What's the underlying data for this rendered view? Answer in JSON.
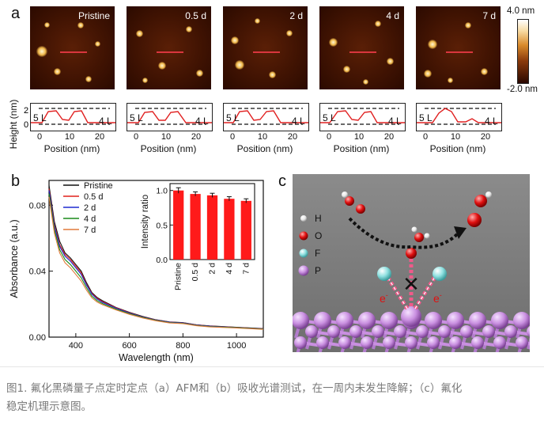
{
  "panel_a": {
    "letter": "a",
    "image_labels": [
      "Pristine",
      "0.5 d",
      "2 d",
      "4 d",
      "7 d"
    ],
    "colorbar": {
      "max": "4.0 nm",
      "min": "-2.0 nm"
    },
    "profile": {
      "ylabel": "Height (nm)",
      "yticks": [
        "0",
        "2"
      ],
      "xticks": [
        "0",
        "10",
        "20"
      ],
      "xlabel": "Position (nm)",
      "left_layer": "5 L",
      "right_layer": "4 L"
    }
  },
  "panel_b": {
    "letter": "b",
    "xlabel": "Wavelength (nm)",
    "ylabel": "Absorbance (a.u.)",
    "xticks": [
      "400",
      "600",
      "800",
      "1000"
    ],
    "yticks": [
      "0.00",
      "0.04",
      "0.08"
    ],
    "legend": [
      {
        "name": "Pristine",
        "color": "#111111"
      },
      {
        "name": "0.5 d",
        "color": "#e0201c"
      },
      {
        "name": "2 d",
        "color": "#1f2ad1"
      },
      {
        "name": "4 d",
        "color": "#1a8a1a"
      },
      {
        "name": "7 d",
        "color": "#e07a3a"
      }
    ]
  },
  "chart_data": [
    {
      "type": "line",
      "xlabel": "Wavelength (nm)",
      "ylabel": "Absorbance (a.u.)",
      "xlim": [
        300,
        1100
      ],
      "ylim": [
        0.0,
        0.095
      ],
      "x": [
        300,
        320,
        340,
        360,
        380,
        400,
        420,
        440,
        460,
        480,
        500,
        550,
        600,
        650,
        700,
        750,
        800,
        850,
        900,
        1000,
        1100
      ],
      "series": [
        {
          "name": "Pristine",
          "values": [
            0.092,
            0.07,
            0.058,
            0.051,
            0.048,
            0.044,
            0.04,
            0.033,
            0.027,
            0.024,
            0.022,
            0.018,
            0.015,
            0.0125,
            0.0105,
            0.0092,
            0.0088,
            0.0075,
            0.0068,
            0.006,
            0.0052
          ]
        },
        {
          "name": "0.5 d",
          "values": [
            0.09,
            0.068,
            0.056,
            0.05,
            0.047,
            0.043,
            0.039,
            0.032,
            0.0265,
            0.0235,
            0.0215,
            0.0178,
            0.0148,
            0.0123,
            0.0104,
            0.0091,
            0.0087,
            0.0074,
            0.0067,
            0.0059,
            0.0051
          ]
        },
        {
          "name": "2 d",
          "values": [
            0.089,
            0.067,
            0.055,
            0.049,
            0.046,
            0.042,
            0.038,
            0.0315,
            0.026,
            0.023,
            0.021,
            0.0175,
            0.0146,
            0.0122,
            0.0103,
            0.009,
            0.0086,
            0.0073,
            0.0066,
            0.0058,
            0.005
          ]
        },
        {
          "name": "4 d",
          "values": [
            0.087,
            0.065,
            0.053,
            0.047,
            0.044,
            0.04,
            0.036,
            0.03,
            0.0248,
            0.022,
            0.0203,
            0.017,
            0.0142,
            0.0119,
            0.0101,
            0.0088,
            0.0084,
            0.0071,
            0.0064,
            0.0057,
            0.0049
          ]
        },
        {
          "name": "7 d",
          "values": [
            0.085,
            0.063,
            0.051,
            0.045,
            0.042,
            0.038,
            0.034,
            0.0285,
            0.0238,
            0.0212,
            0.0196,
            0.0165,
            0.0138,
            0.0116,
            0.0099,
            0.0086,
            0.0082,
            0.0069,
            0.0062,
            0.0055,
            0.0047
          ]
        }
      ]
    },
    {
      "type": "bar",
      "ylabel": "Intensity ratio",
      "categories": [
        "Pristine",
        "0.5 d",
        "2 d",
        "4 d",
        "7 d"
      ],
      "values": [
        1.0,
        0.95,
        0.93,
        0.88,
        0.85
      ],
      "errors": [
        0.04,
        0.03,
        0.03,
        0.03,
        0.03
      ],
      "ylim": [
        0.0,
        1.1
      ],
      "yticks": [
        "0.0",
        "0.5",
        "1.0"
      ]
    }
  ],
  "panel_c": {
    "letter": "c",
    "legend": [
      {
        "label": "H",
        "color": "#f2f2f2"
      },
      {
        "label": "O",
        "color": "#e01010"
      },
      {
        "label": "F",
        "color": "#8fe0e0"
      },
      {
        "label": "P",
        "color": "#c98fe0"
      }
    ],
    "electron_left": "e",
    "electron_right": "e",
    "electron_sup": "-",
    "blocked_mark": "✕"
  },
  "caption": {
    "line1": "图1. 氟化黑磷量子点定时定点（a）AFM和（b）吸收光谱测试，在一周内未发生降解；（c）氟化",
    "line2": "稳定机理示意图。"
  }
}
